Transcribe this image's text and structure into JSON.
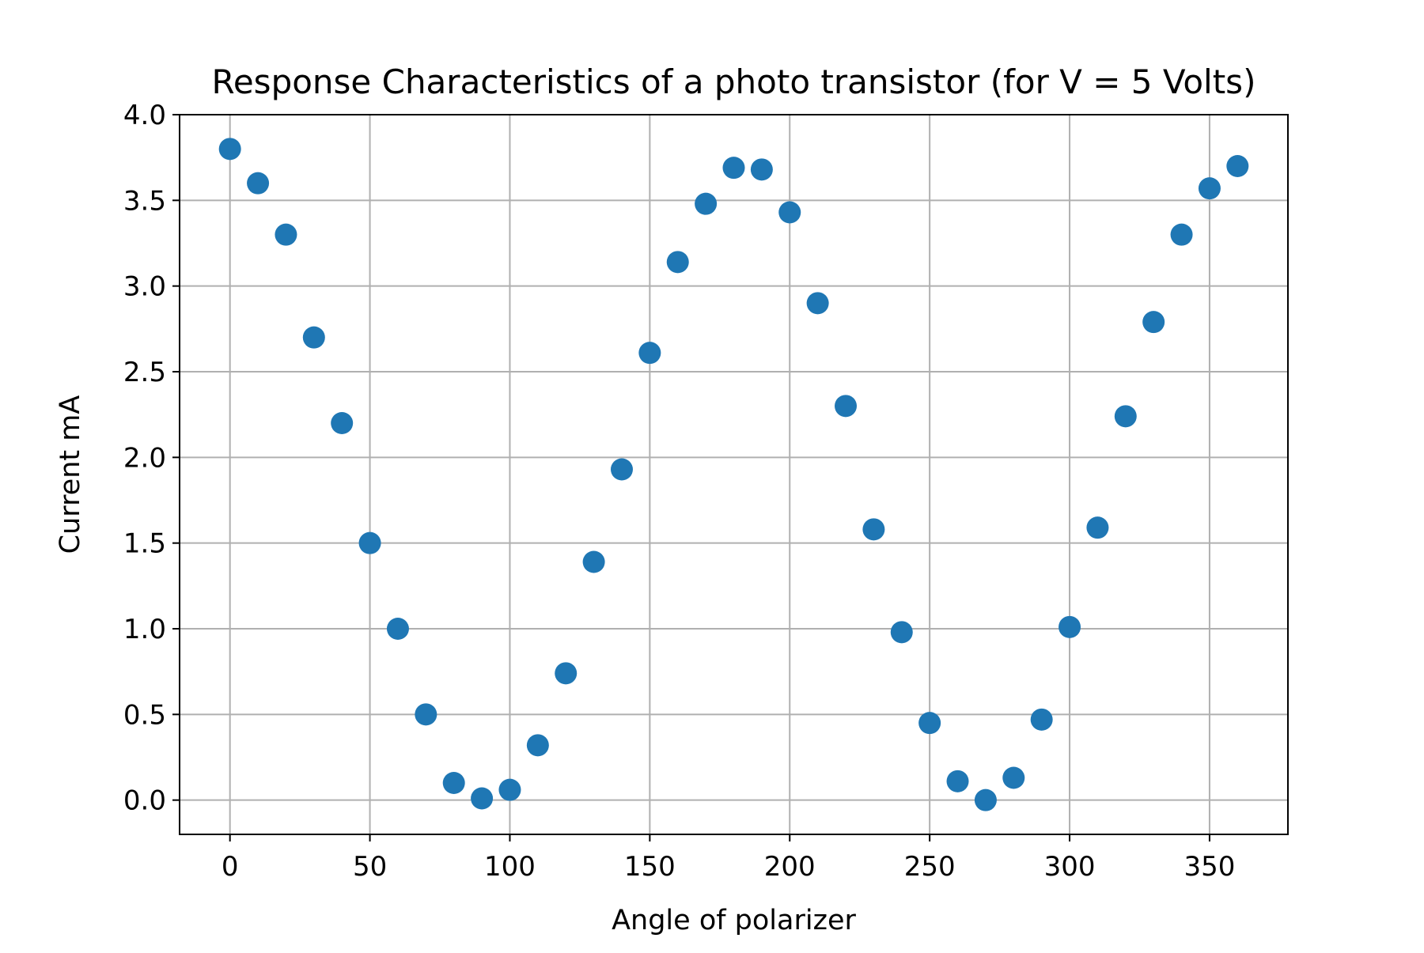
{
  "chart_data": {
    "type": "scatter",
    "title": "Response Characteristics of a photo transistor (for V = 5 Volts)",
    "xlabel": "Angle of polarizer",
    "ylabel": "Current mA",
    "xlim": [
      -18,
      378
    ],
    "ylim": [
      -0.2,
      4.0
    ],
    "xticks": [
      0,
      50,
      100,
      150,
      200,
      250,
      300,
      350
    ],
    "yticks": [
      0.0,
      0.5,
      1.0,
      1.5,
      2.0,
      2.5,
      3.0,
      3.5,
      4.0
    ],
    "xtick_labels": [
      "0",
      "50",
      "100",
      "150",
      "200",
      "250",
      "300",
      "350"
    ],
    "ytick_labels": [
      "0.0",
      "0.5",
      "1.0",
      "1.5",
      "2.0",
      "2.5",
      "3.0",
      "3.5",
      "4.0"
    ],
    "grid": true,
    "marker_color": "#1f77b4",
    "grid_color": "#b0b0b0",
    "series": [
      {
        "x": [
          0,
          10,
          20,
          30,
          40,
          50,
          60,
          70,
          80,
          90,
          100,
          110,
          120,
          130,
          140,
          150,
          160,
          170,
          180,
          190,
          200,
          210,
          220,
          230,
          240,
          250,
          260,
          270,
          280,
          290,
          300,
          310,
          320,
          330,
          340,
          350,
          360
        ],
        "y": [
          3.8,
          3.6,
          3.3,
          2.7,
          2.2,
          1.5,
          1.0,
          0.5,
          0.1,
          0.01,
          0.06,
          0.32,
          0.74,
          1.39,
          1.93,
          2.61,
          3.14,
          3.48,
          3.69,
          3.68,
          3.43,
          2.9,
          2.3,
          1.58,
          0.98,
          0.45,
          0.11,
          0.0,
          0.13,
          0.47,
          1.01,
          1.59,
          2.24,
          2.79,
          3.3,
          3.57,
          3.7
        ]
      }
    ]
  }
}
